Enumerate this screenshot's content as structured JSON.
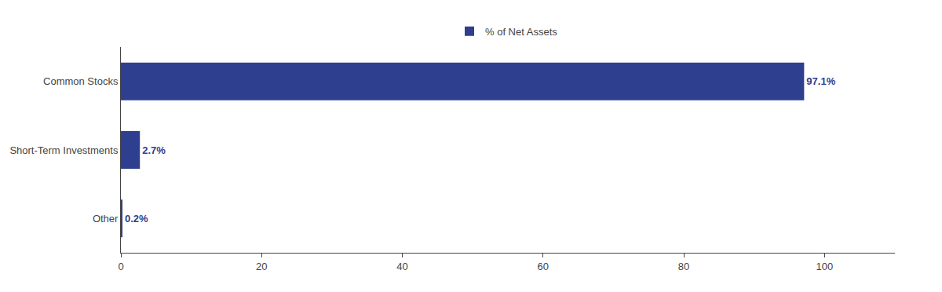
{
  "chart_data": {
    "type": "bar",
    "orientation": "horizontal",
    "categories": [
      "Other",
      "Short-Term Investments",
      "Common Stocks"
    ],
    "series": [
      {
        "name": "% of Net Assets",
        "color": "#2e3f8f",
        "values": [
          0.2,
          2.7,
          97.1
        ],
        "value_labels": [
          "0.2%",
          "2.7%",
          "97.1%"
        ]
      }
    ],
    "xlim": [
      0,
      110
    ],
    "xticks": [
      0,
      20,
      40,
      60,
      80,
      100
    ],
    "grid": false,
    "legend": "top",
    "data_labels": true
  }
}
